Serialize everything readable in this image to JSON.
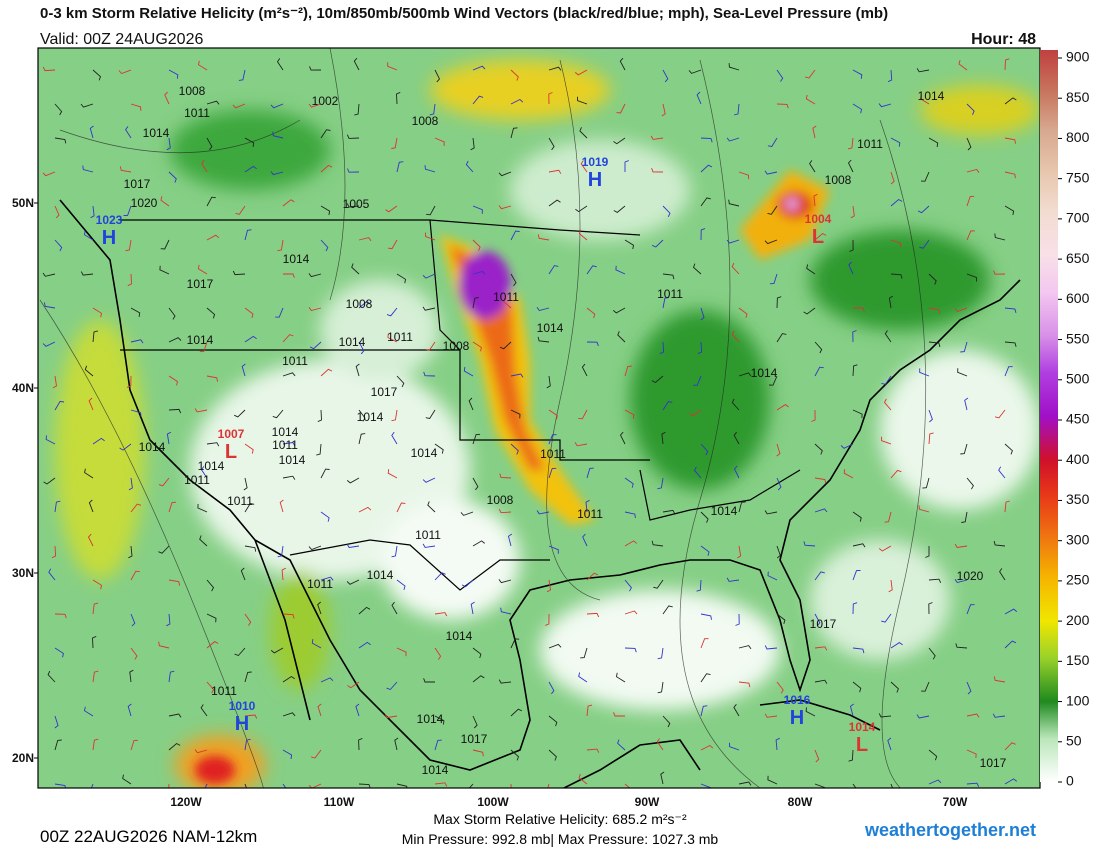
{
  "header": {
    "title": "0-3 km Storm Relative Helicity (m²s⁻²), 10m/850mb/500mb Wind Vectors (black/red/blue; mph), Sea-Level Pressure (mb)",
    "valid": "Valid: 00Z 24AUG2026",
    "hour": "Hour: 48"
  },
  "colorbar": {
    "ticks": [
      0,
      50,
      100,
      150,
      200,
      250,
      300,
      350,
      400,
      450,
      500,
      550,
      600,
      650,
      700,
      750,
      800,
      850,
      900
    ]
  },
  "latitudes": [
    "50N",
    "40N",
    "30N",
    "20N"
  ],
  "longitudes": [
    "120W",
    "110W",
    "100W",
    "90W",
    "80W",
    "70W"
  ],
  "pressure_centers": [
    {
      "type": "H",
      "value": 1019
    },
    {
      "type": "H",
      "value": 1023
    },
    {
      "type": "L",
      "value": 1007
    },
    {
      "type": "L",
      "value": 1004
    },
    {
      "type": "H",
      "value": 1010
    },
    {
      "type": "H",
      "value": 1016
    },
    {
      "type": "L",
      "value": 1014
    }
  ],
  "isobar_labels": [
    1008,
    1011,
    1014,
    1017,
    1020,
    1002,
    1008,
    1005,
    1014,
    1017,
    1014,
    1011,
    1008,
    1014,
    1011,
    1008,
    1011,
    1014,
    1017,
    1014,
    1014,
    1011,
    1014,
    1014,
    1014,
    1011,
    1011,
    1014,
    1011,
    1008,
    1011,
    1014,
    1011,
    1014,
    1014,
    1011,
    1008,
    1011,
    1014,
    1020,
    1017,
    1014,
    1011,
    1014,
    1017,
    1014,
    1017,
    1011
  ],
  "footer": {
    "run": "00Z 22AUG2026 NAM-12km",
    "max_helicity": "Max Storm Relative Helicity: 685.2 m²s⁻²",
    "pressure": "Min Pressure: 992.8 mb| Max Pressure: 1027.3 mb",
    "site": "weathertogether.net"
  }
}
